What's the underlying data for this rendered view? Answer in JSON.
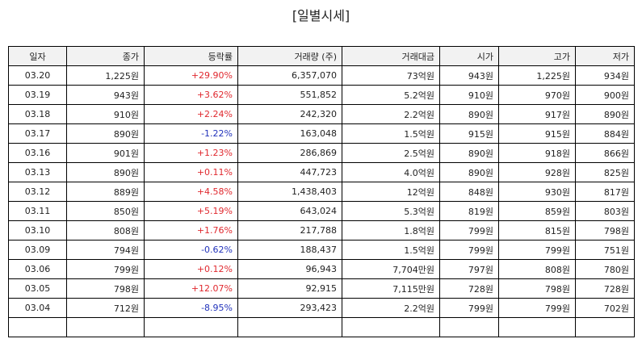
{
  "title": "[일별시세]",
  "columns": [
    "일자",
    "종가",
    "등락률",
    "거래량 (주)",
    "거래대금",
    "시가",
    "고가",
    "저가"
  ],
  "colors": {
    "up": "#e0282e",
    "down": "#2233bb"
  },
  "rows": [
    {
      "date": "03.20",
      "close": "1,225원",
      "change": "+29.90%",
      "dir": "up",
      "volume": "6,357,070",
      "amount": "73억원",
      "open": "943원",
      "high": "1,225원",
      "low": "934원"
    },
    {
      "date": "03.19",
      "close": "943원",
      "change": "+3.62%",
      "dir": "up",
      "volume": "551,852",
      "amount": "5.2억원",
      "open": "910원",
      "high": "970원",
      "low": "900원"
    },
    {
      "date": "03.18",
      "close": "910원",
      "change": "+2.24%",
      "dir": "up",
      "volume": "242,320",
      "amount": "2.2억원",
      "open": "890원",
      "high": "917원",
      "low": "890원"
    },
    {
      "date": "03.17",
      "close": "890원",
      "change": "-1.22%",
      "dir": "down",
      "volume": "163,048",
      "amount": "1.5억원",
      "open": "915원",
      "high": "915원",
      "low": "884원"
    },
    {
      "date": "03.16",
      "close": "901원",
      "change": "+1.23%",
      "dir": "up",
      "volume": "286,869",
      "amount": "2.5억원",
      "open": "890원",
      "high": "918원",
      "low": "866원"
    },
    {
      "date": "03.13",
      "close": "890원",
      "change": "+0.11%",
      "dir": "up",
      "volume": "447,723",
      "amount": "4.0억원",
      "open": "890원",
      "high": "928원",
      "low": "825원"
    },
    {
      "date": "03.12",
      "close": "889원",
      "change": "+4.58%",
      "dir": "up",
      "volume": "1,438,403",
      "amount": "12억원",
      "open": "848원",
      "high": "930원",
      "low": "817원"
    },
    {
      "date": "03.11",
      "close": "850원",
      "change": "+5.19%",
      "dir": "up",
      "volume": "643,024",
      "amount": "5.3억원",
      "open": "819원",
      "high": "859원",
      "low": "803원"
    },
    {
      "date": "03.10",
      "close": "808원",
      "change": "+1.76%",
      "dir": "up",
      "volume": "217,788",
      "amount": "1.8억원",
      "open": "799원",
      "high": "815원",
      "low": "798원"
    },
    {
      "date": "03.09",
      "close": "794원",
      "change": "-0.62%",
      "dir": "down",
      "volume": "188,437",
      "amount": "1.5억원",
      "open": "799원",
      "high": "799원",
      "low": "751원"
    },
    {
      "date": "03.06",
      "close": "799원",
      "change": "+0.12%",
      "dir": "up",
      "volume": "96,943",
      "amount": "7,704만원",
      "open": "797원",
      "high": "808원",
      "low": "780원"
    },
    {
      "date": "03.05",
      "close": "798원",
      "change": "+12.07%",
      "dir": "up",
      "volume": "92,915",
      "amount": "7,115만원",
      "open": "728원",
      "high": "798원",
      "low": "728원"
    },
    {
      "date": "03.04",
      "close": "712원",
      "change": "-8.95%",
      "dir": "down",
      "volume": "293,423",
      "amount": "2.2억원",
      "open": "799원",
      "high": "799원",
      "low": "702원"
    },
    {
      "date": "",
      "close": "",
      "change": "",
      "dir": "",
      "volume": "",
      "amount": "",
      "open": "",
      "high": "",
      "low": ""
    }
  ]
}
